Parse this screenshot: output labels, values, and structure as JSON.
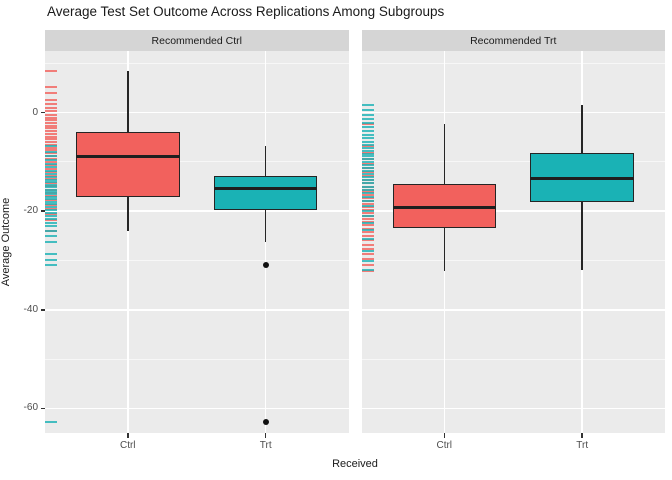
{
  "title": "Average Test Set Outcome Across Replications Among Subgroups",
  "colors": {
    "ctrl": "#f2615d",
    "trt": "#1ab2b5",
    "panel_bg": "#ebebeb",
    "strip_bg": "#d5d5d5",
    "grid": "#ffffff",
    "box_outline": "#252525",
    "tick_label": "#4d4d4d"
  },
  "chart_data": {
    "type": "boxplot",
    "title": "Average Test Set Outcome Across Replications Among Subgroups",
    "xlabel": "Received",
    "ylabel": "Average Outcome",
    "ylim": [
      -65,
      12.5
    ],
    "yticks_major": [
      0,
      -20,
      -40,
      -60
    ],
    "ytick_labels": [
      "0",
      "-20",
      "-40",
      "-60"
    ],
    "yticks_minor": [
      10,
      -10,
      -30,
      -50
    ],
    "legend_position": "none",
    "grid": "on",
    "facets": [
      {
        "label": "Recommended Ctrl",
        "categories": [
          "Ctrl",
          "Trt"
        ],
        "boxes": [
          {
            "category": "Ctrl",
            "color_key": "ctrl",
            "whisker_low": -24.0,
            "q1": -17.2,
            "median": -8.9,
            "q3": -4.0,
            "whisker_high": 8.5,
            "outliers": []
          },
          {
            "category": "Trt",
            "color_key": "trt",
            "whisker_low": -26.2,
            "q1": -19.7,
            "median": -15.4,
            "q3": -12.8,
            "whisker_high": -6.7,
            "outliers": [
              -31.0,
              -62.7
            ]
          }
        ],
        "rug": {
          "ctrl": [
            8.5,
            5.2,
            4.0,
            2.6,
            1.8,
            1.0,
            0.3,
            -0.4,
            -1.0,
            -1.6,
            -2.1,
            -2.7,
            -3.2,
            -3.8,
            -4.3,
            -4.9,
            -5.4,
            -6.0,
            -6.5,
            -7.1,
            -7.6,
            -8.2,
            -8.8,
            -9.4,
            -10.0,
            -10.7,
            -11.4,
            -12.1,
            -12.8,
            -13.5,
            -14.2,
            -14.9,
            -15.6,
            -16.3,
            -17.0,
            -17.8,
            -18.7,
            -19.6,
            -20.6,
            -21.8,
            -24.0
          ],
          "trt": [
            -6.7,
            -7.9,
            -8.8,
            -9.6,
            -10.4,
            -11.1,
            -11.8,
            -12.4,
            -13.0,
            -13.6,
            -14.1,
            -14.6,
            -15.1,
            -15.6,
            -16.1,
            -16.6,
            -17.1,
            -17.6,
            -18.1,
            -18.6,
            -19.1,
            -19.7,
            -20.3,
            -20.9,
            -21.6,
            -22.3,
            -23.1,
            -24.0,
            -25.0,
            -26.2,
            -28.6,
            -29.9,
            -31.0,
            -62.7
          ]
        }
      },
      {
        "label": "Recommended Trt",
        "categories": [
          "Ctrl",
          "Trt"
        ],
        "boxes": [
          {
            "category": "Ctrl",
            "color_key": "ctrl",
            "whisker_low": -32.2,
            "q1": -23.5,
            "median": -19.2,
            "q3": -14.5,
            "whisker_high": -2.3,
            "outliers": []
          },
          {
            "category": "Trt",
            "color_key": "trt",
            "whisker_low": -31.9,
            "q1": -18.1,
            "median": -13.4,
            "q3": -8.1,
            "whisker_high": 1.6,
            "outliers": []
          }
        ],
        "rug": {
          "ctrl": [
            -2.3,
            -6.8,
            -8.2,
            -9.4,
            -10.4,
            -11.3,
            -12.1,
            -12.9,
            -13.6,
            -14.3,
            -15.0,
            -15.6,
            -16.2,
            -16.8,
            -17.4,
            -18.0,
            -18.6,
            -19.2,
            -19.8,
            -20.4,
            -21.0,
            -21.6,
            -22.2,
            -22.9,
            -23.6,
            -24.3,
            -25.1,
            -25.9,
            -26.8,
            -27.7,
            -28.7,
            -29.8,
            -31.0,
            -32.2
          ],
          "trt": [
            1.6,
            0.6,
            -0.4,
            -1.3,
            -2.2,
            -3.0,
            -3.8,
            -4.5,
            -5.2,
            -5.9,
            -6.5,
            -7.1,
            -7.7,
            -8.3,
            -8.9,
            -9.5,
            -10.1,
            -10.7,
            -11.3,
            -11.9,
            -12.5,
            -13.1,
            -13.7,
            -14.3,
            -15.0,
            -15.7,
            -16.4,
            -17.2,
            -18.0,
            -18.9,
            -19.9,
            -21.0,
            -22.3,
            -23.8,
            -25.6,
            -28.0,
            -30.2,
            -31.9
          ]
        }
      }
    ]
  }
}
